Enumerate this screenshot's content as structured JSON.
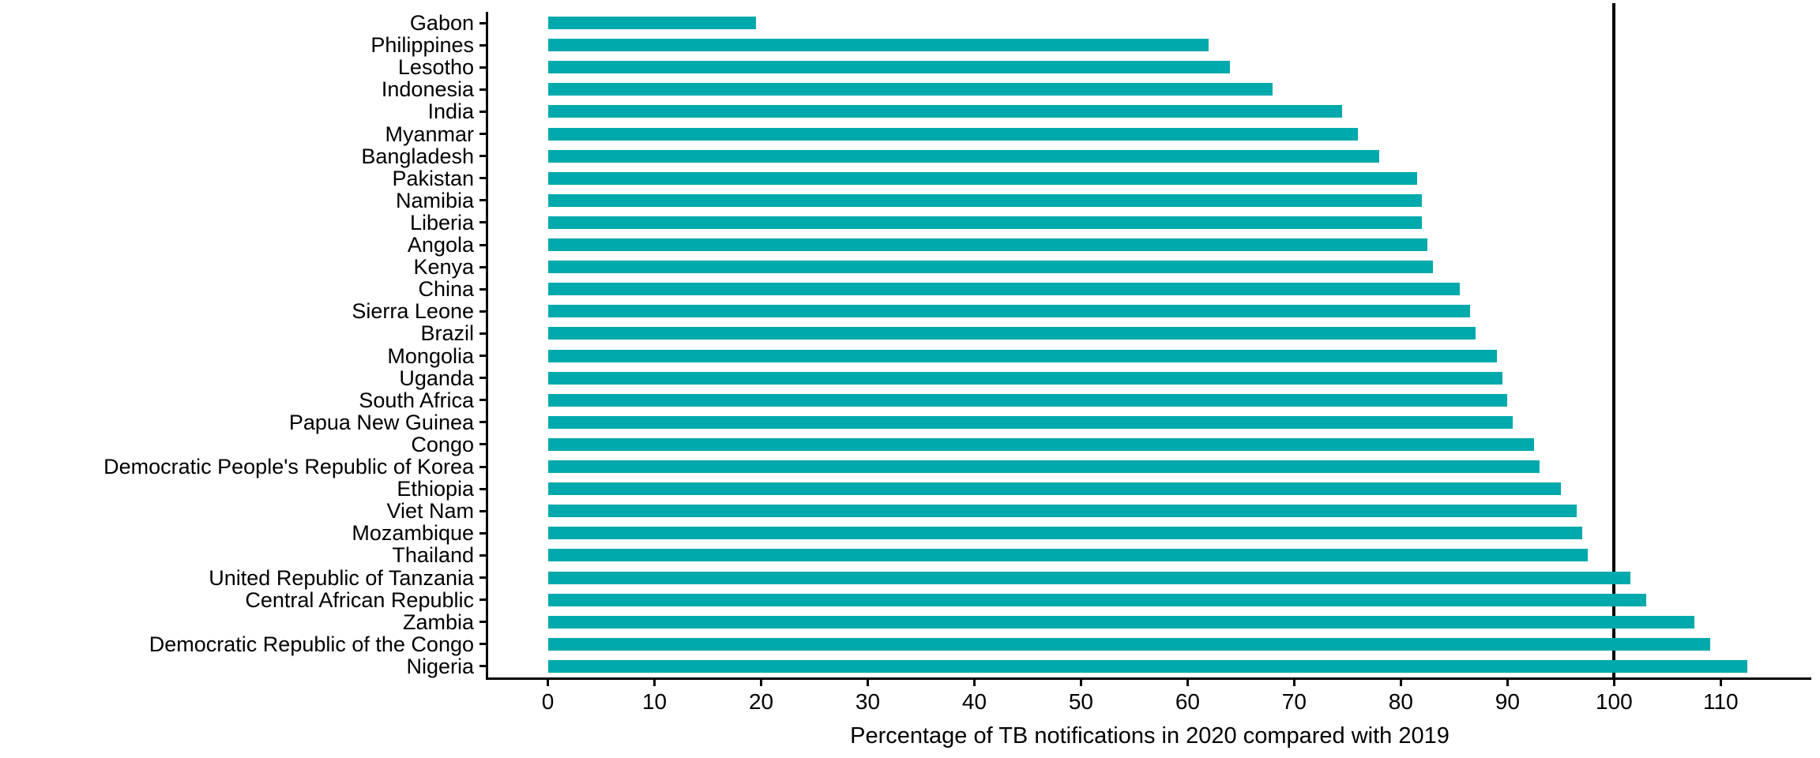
{
  "chart_data": {
    "type": "bar",
    "orientation": "horizontal",
    "title": "",
    "xlabel": "Percentage of TB notifications in 2020 compared with 2019",
    "ylabel": "",
    "categories": [
      "Gabon",
      "Philippines",
      "Lesotho",
      "Indonesia",
      "India",
      "Myanmar",
      "Bangladesh",
      "Pakistan",
      "Namibia",
      "Liberia",
      "Angola",
      "Kenya",
      "China",
      "Sierra Leone",
      "Brazil",
      "Mongolia",
      "Uganda",
      "South Africa",
      "Papua New Guinea",
      "Congo",
      "Democratic People's Republic of Korea",
      "Ethiopia",
      "Viet Nam",
      "Mozambique",
      "Thailand",
      "United Republic of Tanzania",
      "Central African Republic",
      "Zambia",
      "Democratic Republic of the Congo",
      "Nigeria"
    ],
    "values": [
      19.5,
      62,
      64,
      68,
      74.5,
      76,
      78,
      81.5,
      82,
      82,
      82.5,
      83,
      85.5,
      86.5,
      87,
      89,
      89.5,
      90,
      90.5,
      92.5,
      93,
      95,
      96.5,
      97,
      97.5,
      101.5,
      103,
      107.5,
      109,
      112.5
    ],
    "x_ticks": [
      0,
      10,
      20,
      30,
      40,
      50,
      60,
      70,
      80,
      90,
      100,
      110
    ],
    "xlim": [
      -5.6,
      118.5
    ],
    "reference_line_x": 100,
    "bar_color": "#00A9AC",
    "reference_line_color": "#000000",
    "axis_color": "#000000",
    "grid": false,
    "legend": false
  }
}
